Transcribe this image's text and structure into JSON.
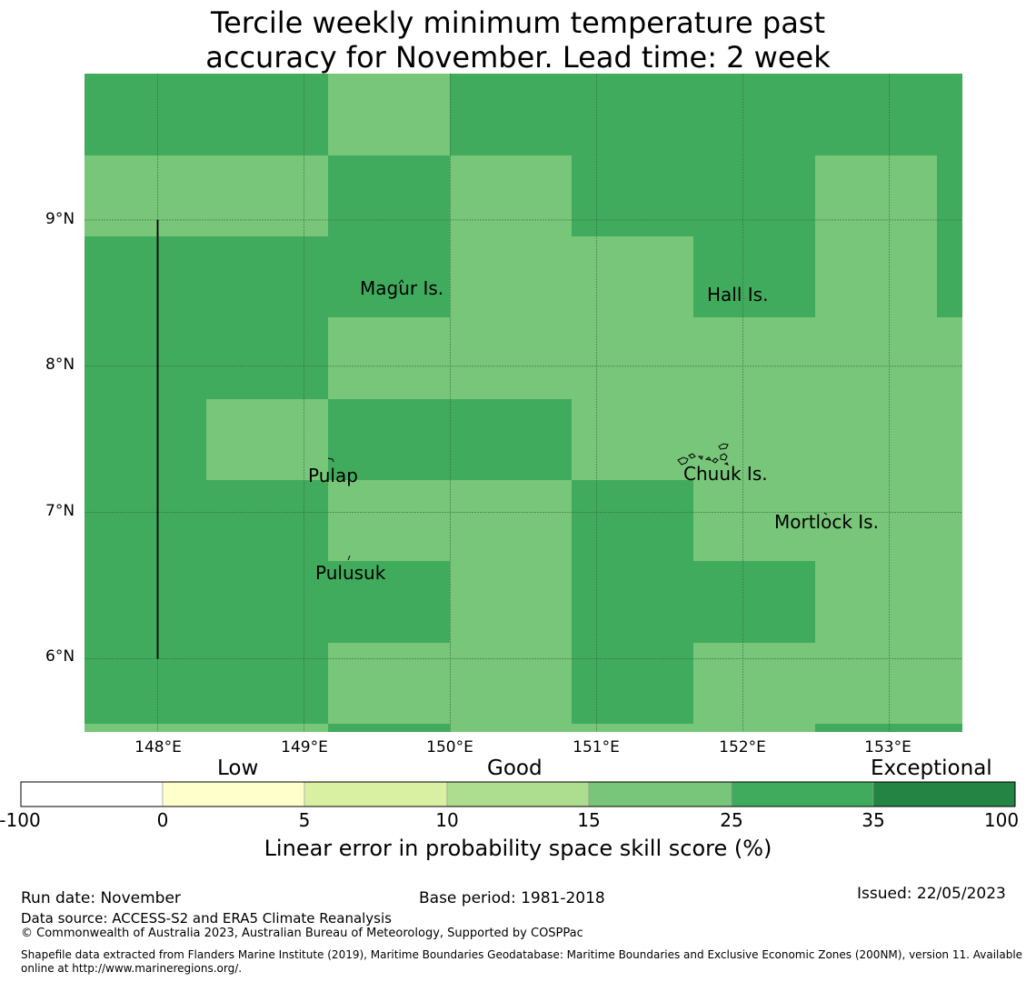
{
  "title": {
    "line1": "Tercile weekly minimum temperature past",
    "line2": "accuracy for November. Lead time: 2 week"
  },
  "map": {
    "lon_range": [
      147.5,
      153.5
    ],
    "lat_range": [
      5.5,
      10.0
    ],
    "grid_lons": [
      148,
      149,
      150,
      151,
      152,
      153
    ],
    "grid_lats": [
      6,
      7,
      8,
      9
    ],
    "x_tick_labels": [
      "148°E",
      "149°E",
      "150°E",
      "151°E",
      "152°E",
      "153°E"
    ],
    "y_tick_labels": [
      "9°N",
      "8°N",
      "7°N",
      "6°N"
    ],
    "cell_category_colors": {
      "good": "#78c679",
      "very_good": "#41ab5d",
      "exceptional": "#238443"
    },
    "places": [
      {
        "name": "Magur Is.",
        "lon": 149.73,
        "lat": 8.45
      },
      {
        "name": "Hall Is.",
        "lon": 151.68,
        "lat": 8.45
      },
      {
        "name": "Pulap",
        "lon": 149.2,
        "lat": 7.4
      },
      {
        "name": "Chuuk Is.",
        "lon": 151.85,
        "lat": 7.4
      },
      {
        "name": "Mortlock Is.",
        "lon": 152.6,
        "lat": 7.0
      },
      {
        "name": "Pulusuk",
        "lon": 149.32,
        "lat": 6.73
      }
    ],
    "boundary_line": {
      "lon": 148.0,
      "lat_from": 6.0,
      "lat_to": 9.0
    }
  },
  "colorbar": {
    "category_labels": [
      "Low",
      "Good",
      "Exceptional"
    ],
    "tick_labels": [
      "-100",
      "0",
      "5",
      "10",
      "15",
      "25",
      "35",
      "100"
    ],
    "segment_colors": [
      "#ffffff",
      "#ffffcc",
      "#d9f0a3",
      "#addd8e",
      "#78c679",
      "#41ab5d",
      "#238443"
    ],
    "label": "Linear error in probability space skill score (%)"
  },
  "footer": {
    "run_date": "Run date: November",
    "base_period": "Base period: 1981-2018",
    "issued": "Issued: 22/05/2023",
    "data_source": "Data source: ACCESS-S2 and ERA5 Climate Reanalysis",
    "copyright": "© Commonwealth of Australia 2023, Australian Bureau of Meteorology, Supported by COSPPac",
    "shapefile_line1": "Shapefile data extracted from Flanders Marine Institute (2019), Maritime Boundaries Geodatabase: Maritime Boundaries and Exclusive Economic Zones (200NM), version 11. Available",
    "shapefile_line2": "online at http://www.marineregions.org/."
  }
}
